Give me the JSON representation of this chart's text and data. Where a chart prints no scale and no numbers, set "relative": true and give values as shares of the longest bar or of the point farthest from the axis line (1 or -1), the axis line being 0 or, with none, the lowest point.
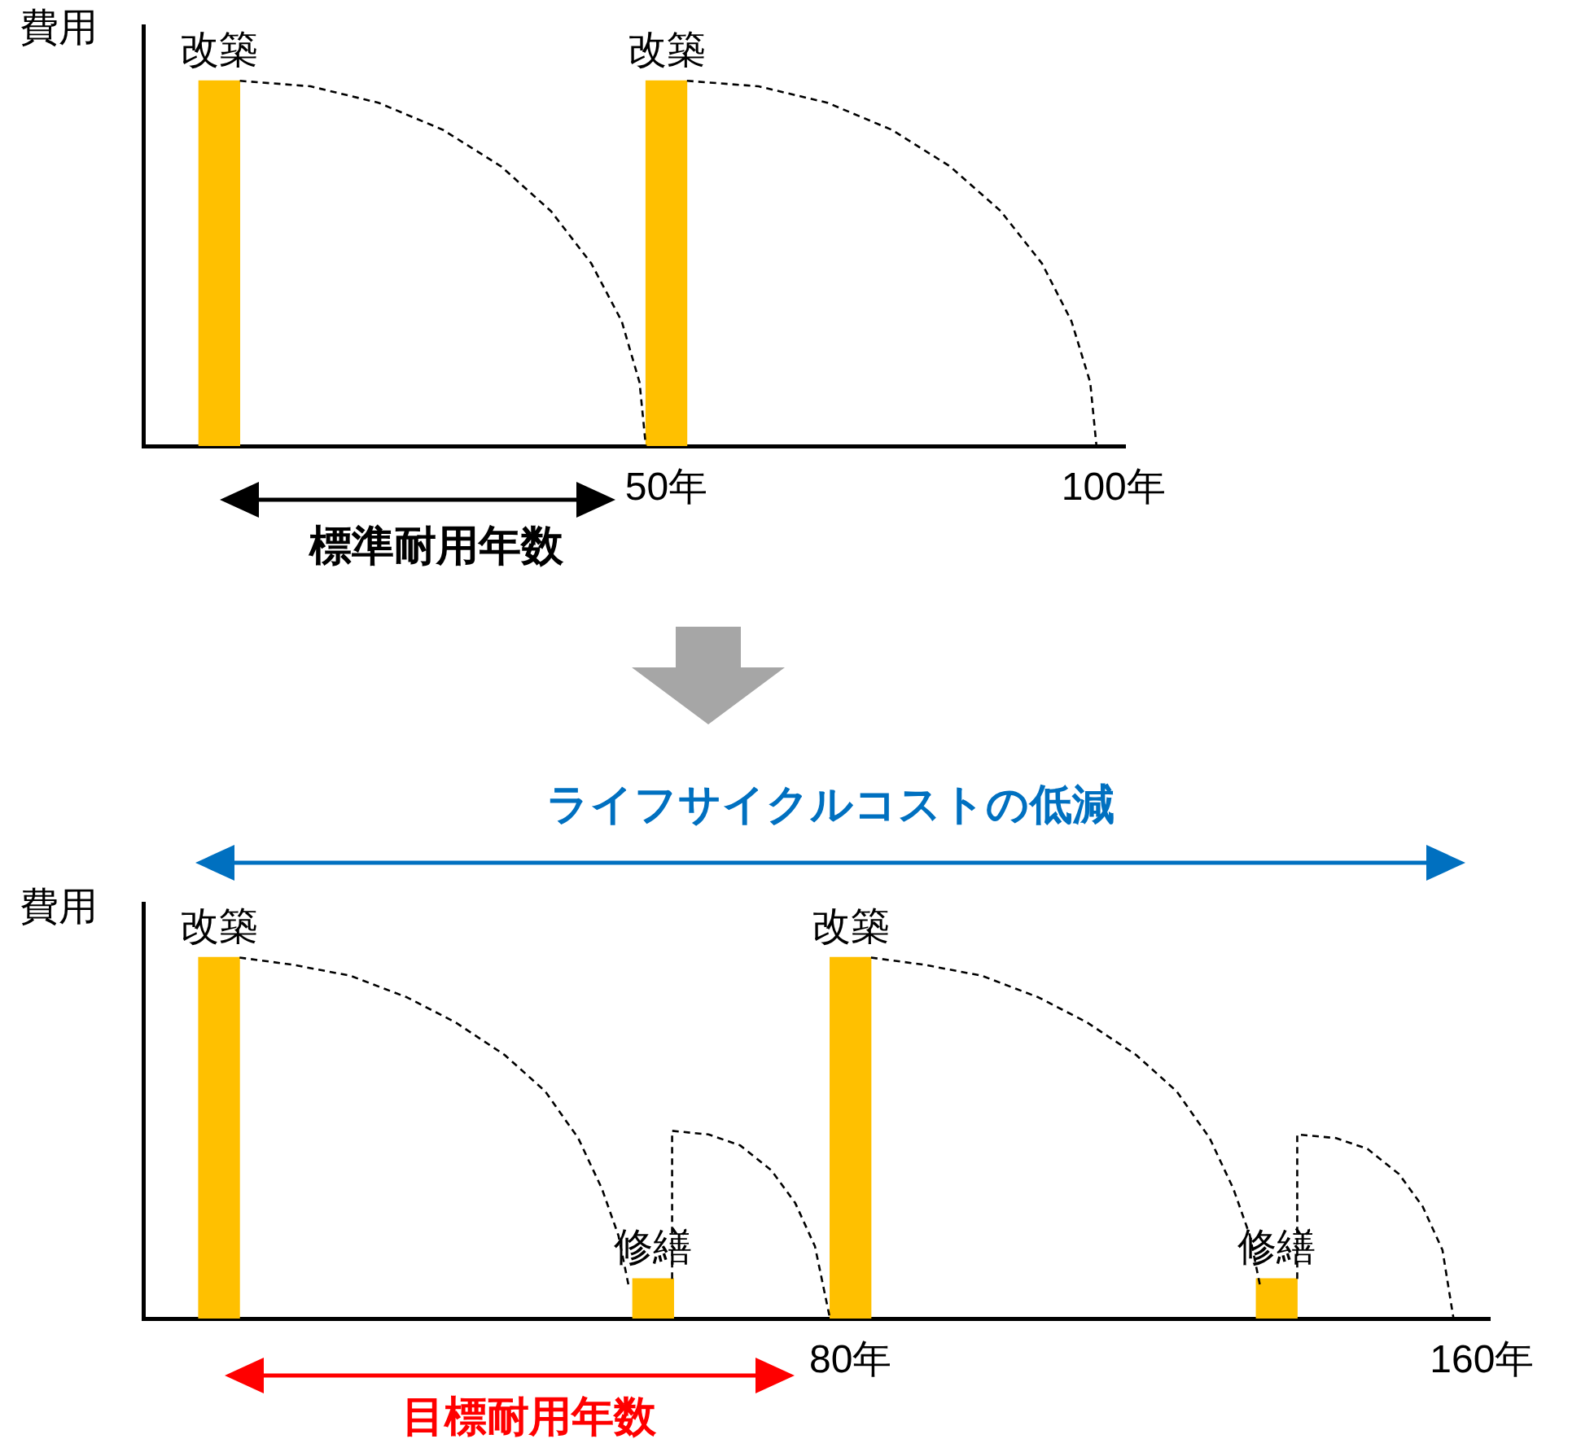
{
  "chart_data": [
    {
      "type": "bar",
      "ylabel": "費用",
      "relative": true,
      "xlim": [
        -8.5,
        101.3
      ],
      "xticks": [
        {
          "value": 50,
          "label": "50年"
        },
        {
          "value": 100,
          "label": "100年"
        }
      ],
      "marker": "none",
      "line_style": "dashed",
      "series": [
        {
          "color": "#ffc000",
          "x": [
            0,
            50
          ],
          "values": [
            1,
            1
          ]
        },
        {
          "type": "line",
          "color": "#000000",
          "x": [
            2.3,
            10.2,
            17.8,
            25,
            31.5,
            37.1,
            41.6,
            45,
            47,
            47.7
          ],
          "values": [
            1,
            0.985,
            0.94,
            0.866,
            0.766,
            0.643,
            0.5,
            0.342,
            0.174,
            0
          ]
        },
        {
          "type": "line",
          "color": "#000000",
          "x": [
            52.3,
            60.3,
            68,
            75.2,
            81.7,
            87.4,
            92,
            95.3,
            97.4,
            98.1
          ],
          "values": [
            1,
            0.985,
            0.94,
            0.866,
            0.766,
            0.643,
            0.5,
            0.342,
            0.174,
            0
          ]
        }
      ],
      "annotations": [
        {
          "text": "改築",
          "x": 0,
          "y": 1
        },
        {
          "text": "改築",
          "x": 50,
          "y": 1
        },
        "標準耐用年数"
      ]
    },
    {
      "type": "bar",
      "ylabel": "費用",
      "relative": true,
      "xlim": [
        -9.6,
        161
      ],
      "xticks": [
        {
          "value": 80,
          "label": "80年"
        },
        {
          "value": 160,
          "label": "160年"
        }
      ],
      "marker": "none",
      "line_style": "dashed",
      "series": [
        {
          "color": "#ffc000",
          "x": [
            0,
            55,
            80,
            134
          ],
          "values": [
            1,
            0.11,
            1,
            0.11
          ]
        },
        {
          "type": "line",
          "color": "#000000",
          "x": [
            2.6,
            9.4,
            16.6,
            23.8,
            30,
            36.2,
            41.3,
            45.5,
            48.5,
            50.6,
            51.9
          ],
          "values": [
            1,
            0.98,
            0.95,
            0.89,
            0.82,
            0.73,
            0.63,
            0.5,
            0.36,
            0.23,
            0.09
          ]
        },
        {
          "type": "line",
          "color": "#000000",
          "x": [
            57.4,
            57.4,
            62,
            66,
            70,
            73,
            75.5,
            77.4
          ],
          "values": [
            0.11,
            0.52,
            0.51,
            0.48,
            0.41,
            0.32,
            0.2,
            0
          ]
        },
        {
          "type": "line",
          "color": "#000000",
          "x": [
            82.6,
            89.4,
            96.6,
            103.8,
            110,
            116.2,
            121.3,
            125.5,
            128.5,
            130.6,
            131.9
          ],
          "values": [
            1,
            0.98,
            0.95,
            0.89,
            0.82,
            0.73,
            0.63,
            0.5,
            0.36,
            0.23,
            0.09
          ]
        },
        {
          "type": "line",
          "color": "#000000",
          "x": [
            136.6,
            136.6,
            141.5,
            145.5,
            149.5,
            152.5,
            155,
            156.4
          ],
          "values": [
            0.11,
            0.51,
            0.5,
            0.47,
            0.4,
            0.31,
            0.19,
            0
          ]
        }
      ],
      "annotations": [
        {
          "text": "改築",
          "x": 0,
          "y": 1
        },
        {
          "text": "改築",
          "x": 80,
          "y": 1
        },
        {
          "text": "修繕",
          "x": 55,
          "y": 0.11
        },
        {
          "text": "修繕",
          "x": 134,
          "y": 0.11
        },
        "ライフサイクルコストの低減",
        "目標耐用年数"
      ]
    }
  ]
}
